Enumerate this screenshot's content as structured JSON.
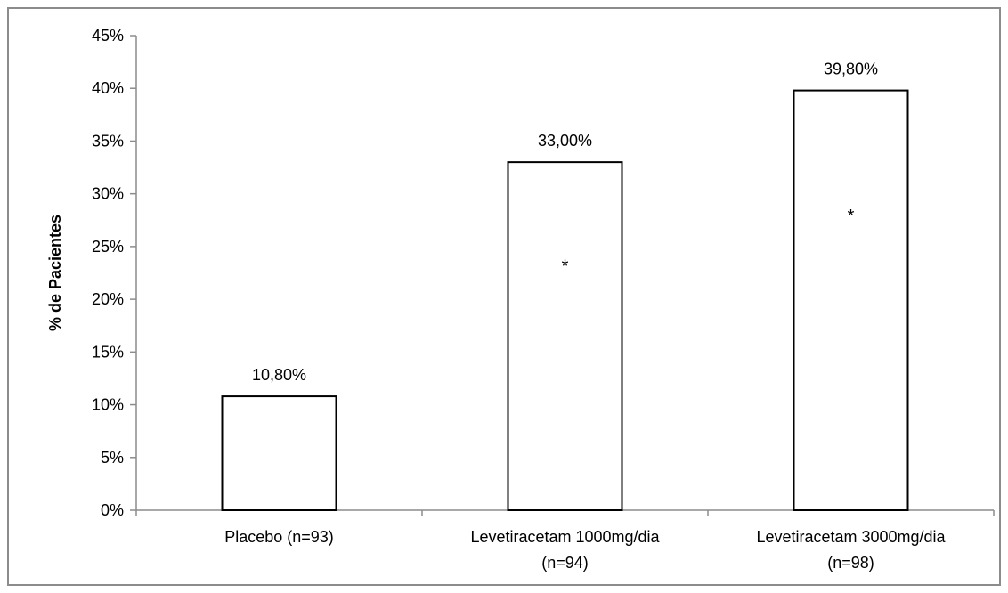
{
  "chart_data": {
    "type": "bar",
    "title": "",
    "xlabel": "",
    "ylabel": "% de Pacientes",
    "ylim": [
      0,
      45
    ],
    "y_ticks": [
      "0%",
      "5%",
      "10%",
      "15%",
      "20%",
      "25%",
      "30%",
      "35%",
      "40%",
      "45%"
    ],
    "categories": [
      [
        "Placebo (n=93)"
      ],
      [
        "Levetiracetam 1000mg/dia",
        "(n=94)"
      ],
      [
        "Levetiracetam 3000mg/dia",
        "(n=98)"
      ]
    ],
    "values": [
      10.8,
      33.0,
      39.8
    ],
    "data_labels": [
      "10,80%",
      "33,00%",
      "39,80%"
    ],
    "significance_markers": [
      "",
      "*",
      "*"
    ],
    "bar_fill": "#ffffff",
    "bar_stroke": "#000000",
    "grid": false,
    "legend": "none"
  }
}
